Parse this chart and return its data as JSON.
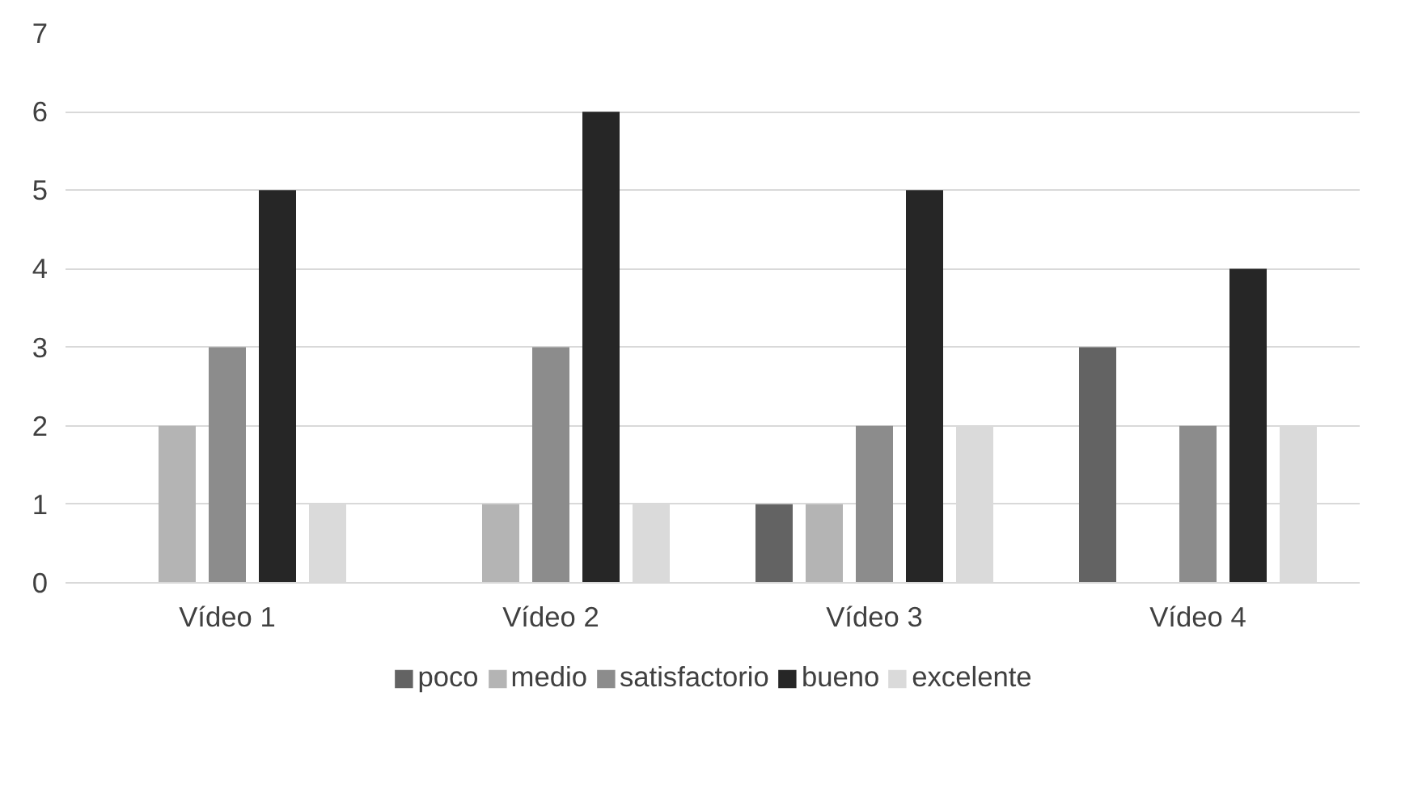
{
  "chart_data": {
    "type": "bar",
    "categories": [
      "Vídeo 1",
      "Vídeo 2",
      "Vídeo 3",
      "Vídeo 4"
    ],
    "series": [
      {
        "name": "poco",
        "color": "#636363",
        "values": [
          0,
          0,
          1,
          3
        ]
      },
      {
        "name": "medio",
        "color": "#b4b4b4",
        "values": [
          2,
          1,
          1,
          0
        ]
      },
      {
        "name": "satisfactorio",
        "color": "#8c8c8c",
        "values": [
          3,
          3,
          2,
          2
        ]
      },
      {
        "name": "bueno",
        "color": "#262626",
        "values": [
          5,
          6,
          5,
          4
        ]
      },
      {
        "name": "excelente",
        "color": "#dadada",
        "values": [
          1,
          1,
          2,
          2
        ]
      }
    ],
    "ylim": [
      0,
      7
    ],
    "yticks": [
      0,
      1,
      2,
      3,
      4,
      5,
      6,
      7
    ],
    "grid": "y",
    "legend": "bottom"
  }
}
